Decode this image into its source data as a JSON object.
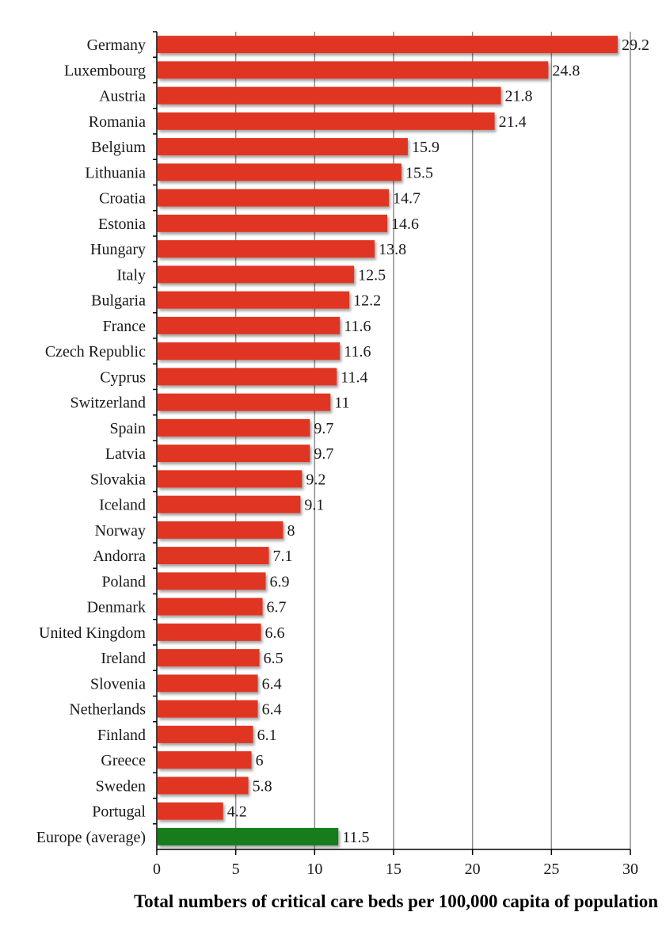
{
  "chart_data": {
    "type": "bar",
    "orientation": "horizontal",
    "categories": [
      "Germany",
      "Luxembourg",
      "Austria",
      "Romania",
      "Belgium",
      "Lithuania",
      "Croatia",
      "Estonia",
      "Hungary",
      "Italy",
      "Bulgaria",
      "France",
      "Czech Republic",
      "Cyprus",
      "Switzerland",
      "Spain",
      "Latvia",
      "Slovakia",
      "Iceland",
      "Norway",
      "Andorra",
      "Poland",
      "Denmark",
      "United Kingdom",
      "Ireland",
      "Slovenia",
      "Netherlands",
      "Finland",
      "Greece",
      "Sweden",
      "Portugal",
      "Europe (average)"
    ],
    "values": [
      29.2,
      24.8,
      21.8,
      21.4,
      15.9,
      15.5,
      14.7,
      14.6,
      13.8,
      12.5,
      12.2,
      11.6,
      11.6,
      11.4,
      11,
      9.7,
      9.7,
      9.2,
      9.1,
      8,
      7.1,
      6.9,
      6.7,
      6.6,
      6.5,
      6.4,
      6.4,
      6.1,
      6,
      5.8,
      4.2,
      11.5
    ],
    "value_labels": [
      "29.2",
      "24.8",
      "21.8",
      "21.4",
      "15.9",
      "15.5",
      "14.7",
      "14.6",
      "13.8",
      "12.5",
      "12.2",
      "11.6",
      "11.6",
      "11.4",
      "11",
      "9.7",
      "9.7",
      "9.2",
      "9.1",
      "8",
      "7.1",
      "6.9",
      "6.7",
      "6.6",
      "6.5",
      "6.4",
      "6.4",
      "6.1",
      "6",
      "5.8",
      "4.2",
      "11.5"
    ],
    "bar_colors": {
      "country": "#e03524",
      "average": "#127c1c"
    },
    "highlight_category": "Europe (average)",
    "title": "",
    "xlabel": "Total numbers of critical care beds per 100,000 capita of population",
    "ylabel": "",
    "xlim": [
      0,
      30
    ],
    "xticks": [
      0,
      5,
      10,
      15,
      20,
      25,
      30
    ],
    "xtick_labels": [
      "0",
      "5",
      "10",
      "15",
      "20",
      "25",
      "30"
    ],
    "grid": "vertical",
    "legend": "none"
  }
}
